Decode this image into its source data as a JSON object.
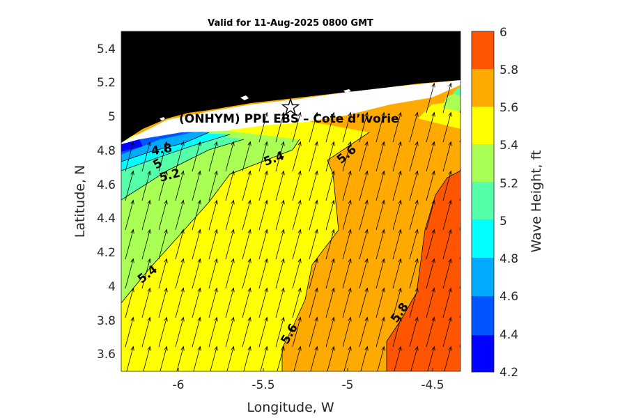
{
  "title": "Valid for 11-Aug-2025 0800 GMT",
  "site_label": "(ONHYM) PPL EBS – Cote d’Ivorie",
  "colors": {
    "land": "#000000",
    "coast_band": "#ffffff",
    "arrow": "#000000",
    "contour_line": "#000000"
  },
  "chart_data": {
    "type": "heatmap",
    "subtype": "filled-contour map with wave-direction arrows",
    "xlabel": "Longitude, W",
    "ylabel": "Latitude, N",
    "xlim": [
      -6.35,
      -4.35
    ],
    "ylim": [
      3.5,
      5.5
    ],
    "xticks": [
      -6,
      -5.5,
      -5,
      -4.5
    ],
    "xtick_labels": [
      "-6",
      "-5.5",
      "-5",
      "-4.5"
    ],
    "yticks": [
      3.6,
      3.8,
      4.0,
      4.2,
      4.4,
      4.6,
      4.8,
      5.0,
      5.2,
      5.4
    ],
    "ytick_labels": [
      "3.6",
      "3.8",
      "4",
      "4.2",
      "4.4",
      "4.6",
      "4.8",
      "5",
      "5.2",
      "5.4"
    ],
    "colorbar": {
      "label": "Wave Height, ft",
      "levels": [
        4.2,
        4.4,
        4.6,
        4.8,
        5.0,
        5.2,
        5.4,
        5.6,
        5.8,
        6.0
      ],
      "tick_labels": [
        "4.2",
        "4.4",
        "4.6",
        "4.8",
        "5",
        "5.2",
        "5.4",
        "5.6",
        "5.8",
        "6"
      ],
      "colors": [
        "#0000ff",
        "#0055ff",
        "#00aaff",
        "#00ffff",
        "#55ffaa",
        "#aaff55",
        "#ffff00",
        "#ffaa00",
        "#ff5500"
      ]
    },
    "contour_labels": [
      {
        "text": "4.8",
        "lon": -6.17,
        "lat": 4.77,
        "angle": -10
      },
      {
        "text": "5",
        "lon": -6.14,
        "lat": 4.72,
        "angle": -30
      },
      {
        "text": "5.2",
        "lon": -6.08,
        "lat": 4.65,
        "angle": -15
      },
      {
        "text": "5.4",
        "lon": -5.47,
        "lat": 4.74,
        "angle": -20
      },
      {
        "text": "5.6",
        "lon": -4.99,
        "lat": 4.77,
        "angle": -40
      },
      {
        "text": "5.4",
        "lon": -6.17,
        "lat": 4.05,
        "angle": -38
      },
      {
        "text": "5.6",
        "lon": -5.31,
        "lat": 3.71,
        "angle": -60
      },
      {
        "text": "5.8",
        "lon": -4.68,
        "lat": 3.85,
        "angle": -55
      }
    ],
    "site_marker": {
      "lon": -5.33,
      "lat": 5.05
    },
    "wave_direction_approx_deg_from_north": 15
  }
}
